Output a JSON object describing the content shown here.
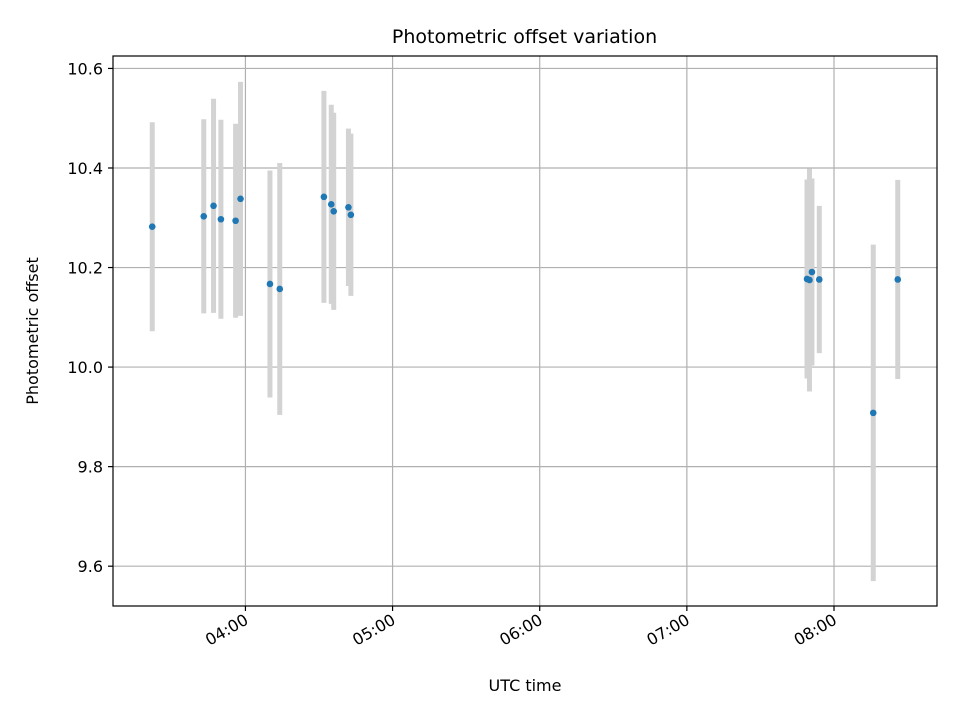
{
  "chart_data": {
    "type": "scatter",
    "title": "Photometric offset variation",
    "xlabel": "UTC time",
    "ylabel": "Photometric offset",
    "x_tick_labels": [
      "04:00",
      "05:00",
      "06:00",
      "07:00",
      "08:00"
    ],
    "x_tick_times": [
      "04:00",
      "05:00",
      "06:00",
      "07:00",
      "08:00"
    ],
    "y_ticks": [
      9.6,
      9.8,
      10.0,
      10.2,
      10.4,
      10.6
    ],
    "y_tick_labels": [
      "9.6",
      "9.8",
      "10.0",
      "10.2",
      "10.4",
      "10.6"
    ],
    "xlim": [
      "03:06",
      "08:42"
    ],
    "ylim": [
      9.52,
      10.625
    ],
    "grid": true,
    "marker_color": "#1f77b4",
    "errorbar_color": "#d3d3d3",
    "points": [
      {
        "time": "03:22",
        "y": 10.282,
        "err": 0.21
      },
      {
        "time": "03:43",
        "y": 10.303,
        "err": 0.195
      },
      {
        "time": "03:47",
        "y": 10.324,
        "err": 0.215
      },
      {
        "time": "03:50",
        "y": 10.297,
        "err": 0.2
      },
      {
        "time": "03:56",
        "y": 10.294,
        "err": 0.195
      },
      {
        "time": "03:58",
        "y": 10.338,
        "err": 0.235
      },
      {
        "time": "04:10",
        "y": 10.167,
        "err": 0.228
      },
      {
        "time": "04:14",
        "y": 10.157,
        "err": 0.253
      },
      {
        "time": "04:32",
        "y": 10.342,
        "err": 0.213
      },
      {
        "time": "04:35",
        "y": 10.327,
        "err": 0.2
      },
      {
        "time": "04:36",
        "y": 10.313,
        "err": 0.198
      },
      {
        "time": "04:42",
        "y": 10.321,
        "err": 0.158
      },
      {
        "time": "04:43",
        "y": 10.306,
        "err": 0.163
      },
      {
        "time": "07:49",
        "y": 10.177,
        "err": 0.2
      },
      {
        "time": "07:50",
        "y": 10.175,
        "err": 0.224
      },
      {
        "time": "07:51",
        "y": 10.191,
        "err": 0.188
      },
      {
        "time": "07:54",
        "y": 10.176,
        "err": 0.148
      },
      {
        "time": "08:16",
        "y": 9.908,
        "err": 0.338
      },
      {
        "time": "08:26",
        "y": 10.176,
        "err": 0.2
      }
    ]
  }
}
